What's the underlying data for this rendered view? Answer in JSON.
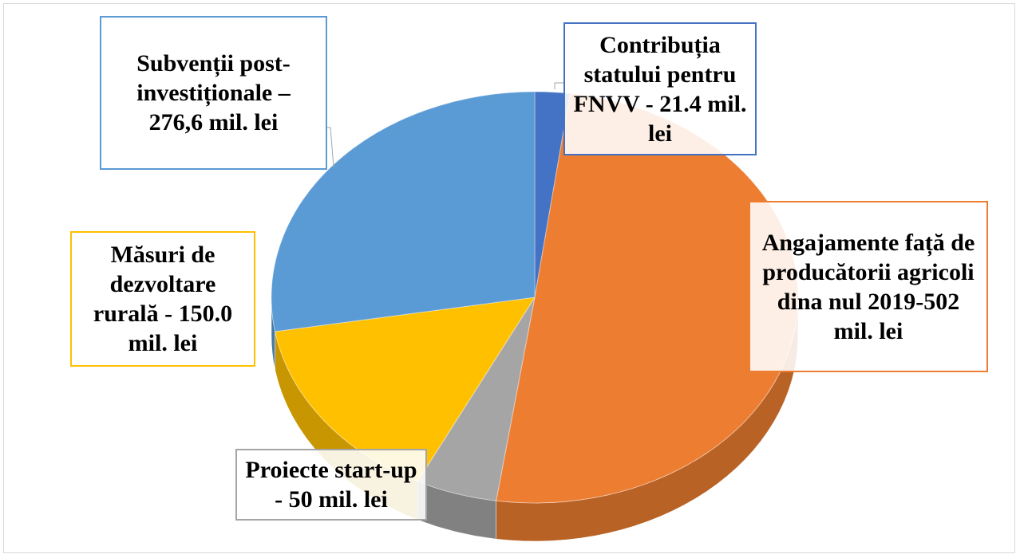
{
  "chart_data": {
    "type": "pie",
    "categories": [
      "Contribuția statului pentru FNVV - 21.4 mil. lei",
      "Angajamente față de producătorii agricoli dina nul 2019-502 mil. lei",
      "Proiecte start-up - 50 mil.  lei",
      "Măsuri de dezvoltare rurală  - 150.0 mil. lei",
      "Subvenții post-investiționale – 276,6 mil. lei"
    ],
    "values": [
      21.4,
      502,
      50,
      150.0,
      276.6
    ],
    "colors": [
      "#4472c4",
      "#ed7d31",
      "#a5a5a5",
      "#ffc000",
      "#5b9bd5"
    ]
  }
}
